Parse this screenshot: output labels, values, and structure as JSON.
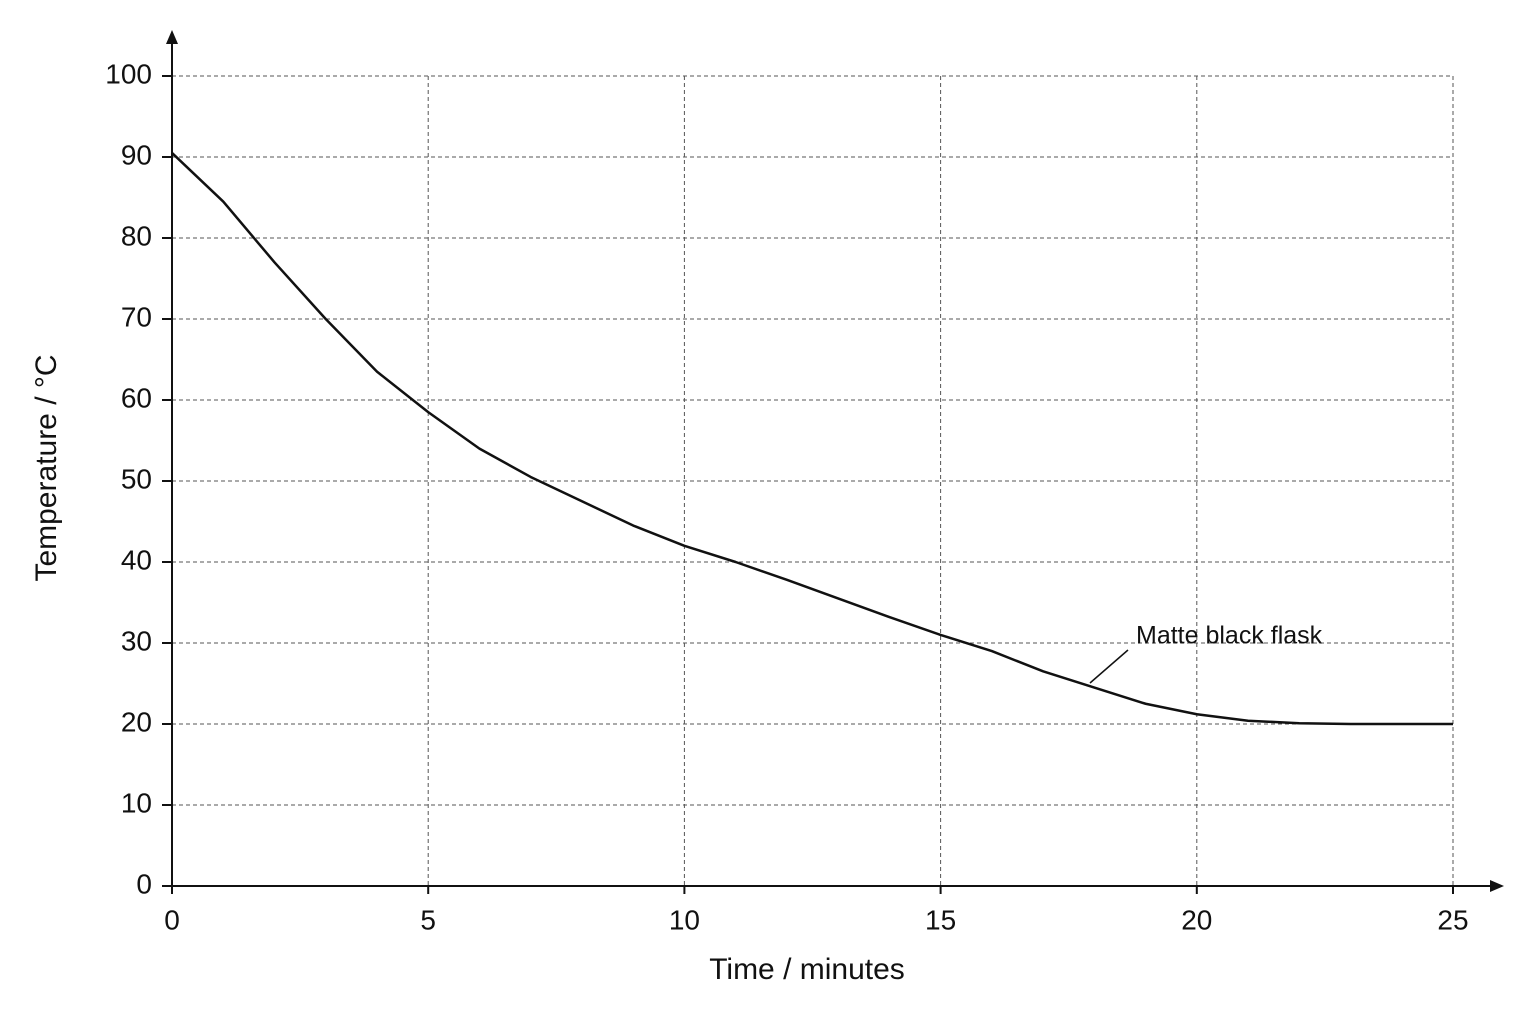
{
  "chart_data": {
    "type": "line",
    "x_label": "Time / minutes",
    "y_label": "Temperature / °C",
    "x": [
      0,
      1,
      2,
      3,
      4,
      5,
      6,
      7,
      8,
      9,
      10,
      11,
      12,
      13,
      14,
      15,
      16,
      17,
      18,
      19,
      20,
      21,
      22,
      23,
      24,
      25
    ],
    "series": [
      {
        "name": "Matte black flask",
        "color": "#111111",
        "values": [
          90.5,
          84.5,
          77,
          70,
          63.5,
          58.5,
          54,
          50.5,
          47.5,
          44.5,
          42,
          40,
          37.8,
          35.5,
          33.2,
          31,
          29,
          26.5,
          24.5,
          22.5,
          21.2,
          20.4,
          20.1,
          20,
          20,
          20
        ]
      }
    ],
    "xlim": [
      0,
      25
    ],
    "xticks": [
      0,
      5,
      10,
      15,
      20,
      25
    ],
    "ylim": [
      0,
      100
    ],
    "yticks": [
      0,
      10,
      20,
      30,
      40,
      50,
      60,
      70,
      80,
      90,
      100
    ],
    "grid": true
  }
}
